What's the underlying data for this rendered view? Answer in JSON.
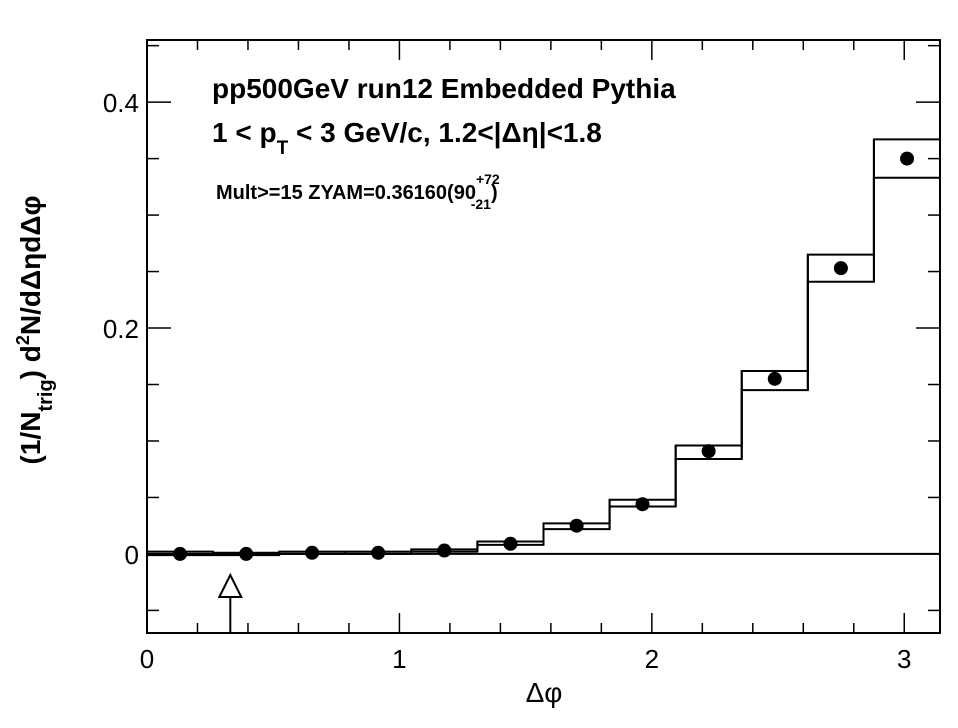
{
  "chart_data": {
    "type": "scatter",
    "title_lines": [
      "pp500GeV run12 Embedded Pythia",
      "1 < p_T < 3 GeV/c, 1.2<|Δη|<1.8"
    ],
    "annotation": "Mult>=15 ZYAM=0.36160(90+72-21)",
    "xlabel": "Δφ",
    "ylabel": "(1/N_trig) d²N/dΔηdΔφ",
    "xlim": [
      0,
      3.14159
    ],
    "ylim": [
      -0.07,
      0.455
    ],
    "x_tick_labels": [
      "0",
      "1",
      "2",
      "3"
    ],
    "y_tick_labels": [
      "0",
      "0.2",
      "0.4"
    ],
    "zyam_arrow_x": 0.33,
    "x": [
      0.131,
      0.393,
      0.654,
      0.916,
      1.178,
      1.44,
      1.702,
      1.963,
      2.225,
      2.487,
      2.749,
      3.011
    ],
    "values": [
      0.0,
      0.0,
      0.001,
      0.001,
      0.003,
      0.009,
      0.025,
      0.044,
      0.091,
      0.155,
      0.253,
      0.35
    ],
    "band_upper": [
      0.002,
      0.001,
      0.002,
      0.002,
      0.004,
      0.011,
      0.027,
      0.048,
      0.096,
      0.162,
      0.265,
      0.367
    ],
    "band_lower": [
      -0.001,
      -0.001,
      0.0,
      0.0,
      0.002,
      0.008,
      0.022,
      0.042,
      0.084,
      0.145,
      0.241,
      0.333
    ],
    "grid": false
  },
  "title": {
    "line1": "pp500GeV run12 Embedded Pythia",
    "line2_part1": "1 < p",
    "line2_sub": "T",
    "line2_part2": " < 3 GeV/c, 1.2<|Δη|<1.8"
  },
  "annotation": {
    "text": "Mult>=15 ZYAM=0.36160(90",
    "sup": "+72",
    "sub": "-21",
    "close": ")"
  },
  "axes": {
    "xlabel": "Δφ",
    "ylabel_part1": "(1/N",
    "ylabel_sub": "trig",
    "ylabel_part2": ") d",
    "ylabel_sup": "2",
    "ylabel_part3": "N/dΔηdΔφ"
  }
}
